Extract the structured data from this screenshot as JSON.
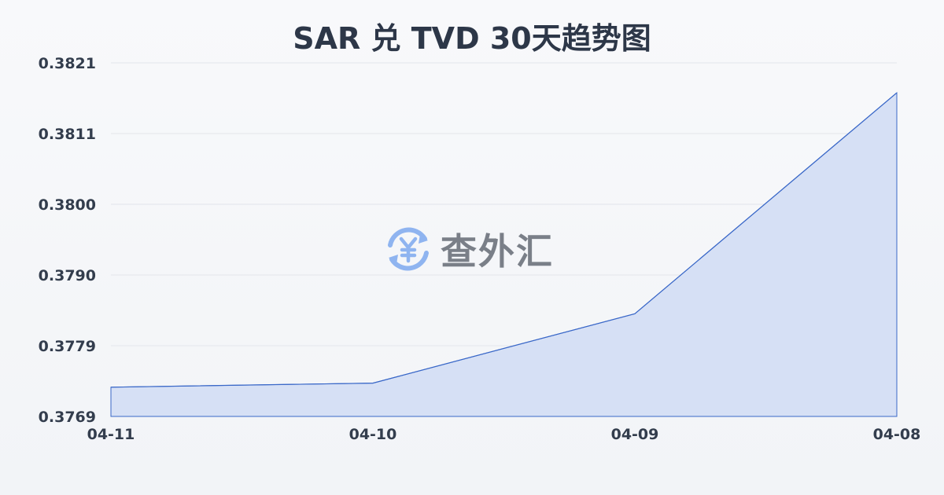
{
  "chart_data": {
    "type": "area",
    "title": "SAR 兑 TVD 30天趋势图",
    "categories": [
      "04-11",
      "04-10",
      "04-09",
      "04-08"
    ],
    "values": [
      0.37733,
      0.37739,
      0.37841,
      0.38166
    ],
    "yticks": [
      "0.3769",
      "0.3779",
      "0.3790",
      "0.3800",
      "0.3811",
      "0.3821"
    ],
    "ylim": [
      0.3769,
      0.3821
    ],
    "grid": true,
    "colors": {
      "line": "#3a68c8",
      "fill": "#d6e0f5"
    }
  },
  "watermark": {
    "text": "查外汇",
    "icon": "yen-exchange-icon"
  }
}
